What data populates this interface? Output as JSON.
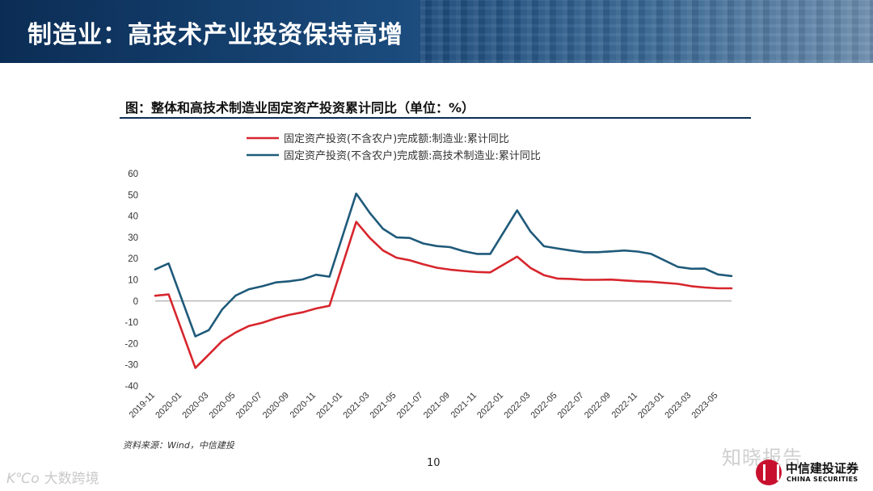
{
  "header": {
    "title": "制造业：高技术产业投资保持高增"
  },
  "figure": {
    "title": "图：整体和高技术制造业固定资产投资累计同比（单位：%）"
  },
  "source_note": "资料来源：Wind，中信建投",
  "page_number": "10",
  "watermarks": {
    "left_mark": "K℃o",
    "left_text": "大数跨境",
    "right_text": "知晓报告"
  },
  "brand": {
    "name_cn": "中信建投证券",
    "name_en": "CHINA SECURITIES"
  },
  "colors": {
    "series_manufacturing": "#d7262d",
    "series_hightech": "#1f5a7a",
    "banner": "#0b2d55"
  },
  "chart_data": {
    "type": "line",
    "ylim": [
      -40,
      60
    ],
    "yticks": [
      -40,
      -30,
      -20,
      -10,
      0,
      10,
      20,
      30,
      40,
      50,
      60
    ],
    "x": [
      "2019-11",
      "2019-12",
      "2020-01",
      "2020-02",
      "2020-03",
      "2020-04",
      "2020-05",
      "2020-06",
      "2020-07",
      "2020-08",
      "2020-09",
      "2020-10",
      "2020-11",
      "2020-12",
      "2021-01",
      "2021-02",
      "2021-03",
      "2021-04",
      "2021-05",
      "2021-06",
      "2021-07",
      "2021-08",
      "2021-09",
      "2021-10",
      "2021-11",
      "2021-12",
      "2022-01",
      "2022-02",
      "2022-03",
      "2022-04",
      "2022-05",
      "2022-06",
      "2022-07",
      "2022-08",
      "2022-09",
      "2022-10",
      "2022-11",
      "2022-12",
      "2023-01",
      "2023-02",
      "2023-03",
      "2023-04",
      "2023-05",
      "2023-06"
    ],
    "xticks": [
      "2019-11",
      "2020-01",
      "2020-03",
      "2020-05",
      "2020-07",
      "2020-09",
      "2020-11",
      "2021-01",
      "2021-03",
      "2021-05",
      "2021-07",
      "2021-09",
      "2021-11",
      "2022-01",
      "2022-03",
      "2022-05",
      "2022-07",
      "2022-09",
      "2022-11",
      "2023-01",
      "2023-03",
      "2023-05"
    ],
    "legend_position": "top",
    "grid": false,
    "series": [
      {
        "name": "固定资产投资(不含农户)完成额:制造业:累计同比",
        "color": "#d7262d",
        "values": [
          2.5,
          3.1,
          null,
          -31.5,
          -25.2,
          -18.8,
          -14.8,
          -11.7,
          -10.2,
          -8.1,
          -6.5,
          -5.3,
          -3.5,
          -2.2,
          null,
          37.3,
          29.8,
          23.8,
          20.4,
          19.2,
          17.3,
          15.7,
          14.8,
          14.2,
          13.7,
          13.5,
          null,
          20.9,
          15.6,
          12.2,
          10.6,
          10.4,
          10.0,
          10.0,
          10.1,
          9.7,
          9.3,
          9.1,
          null,
          8.1,
          7.0,
          6.4,
          6.0,
          6.0
        ]
      },
      {
        "name": "固定资产投资(不含农户)完成额:高技术制造业:累计同比",
        "color": "#1f5a7a",
        "values": [
          14.9,
          17.7,
          null,
          -16.6,
          -13.7,
          -3.9,
          2.6,
          5.6,
          7.0,
          8.8,
          9.3,
          10.2,
          12.4,
          11.5,
          null,
          50.6,
          41.6,
          34.0,
          30.0,
          29.7,
          27.1,
          25.9,
          25.4,
          23.5,
          22.2,
          22.2,
          null,
          42.7,
          32.7,
          25.8,
          24.8,
          23.8,
          23.0,
          23.0,
          23.4,
          23.8,
          23.3,
          22.2,
          null,
          16.1,
          15.2,
          15.3,
          12.5,
          11.8
        ]
      }
    ]
  }
}
